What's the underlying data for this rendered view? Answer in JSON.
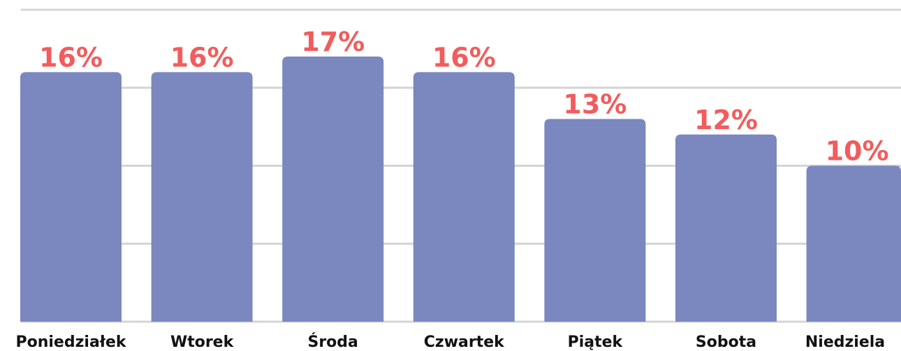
{
  "chart_data": {
    "type": "bar",
    "categories": [
      "Poniedziałek",
      "Wtorek",
      "Środa",
      "Czwartek",
      "Piątek",
      "Sobota",
      "Niedziela"
    ],
    "values": [
      16,
      16,
      17,
      16,
      13,
      12,
      10
    ],
    "value_labels": [
      "16%",
      "16%",
      "17%",
      "16%",
      "13%",
      "12%",
      "10%"
    ],
    "color": "#7a88bf",
    "ylim": [
      0,
      20
    ],
    "yticks": [
      0,
      5,
      10,
      15,
      20
    ],
    "grid": true
  }
}
